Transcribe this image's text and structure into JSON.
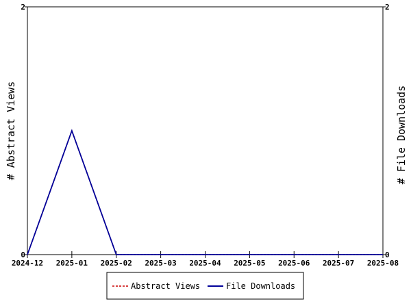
{
  "chart_data": {
    "type": "line",
    "x": [
      "2024-12",
      "2025-01",
      "2025-02",
      "2025-03",
      "2025-04",
      "2025-05",
      "2025-06",
      "2025-07",
      "2025-08"
    ],
    "series": [
      {
        "name": "Abstract Views",
        "values": [
          0,
          1,
          0,
          0,
          0,
          0,
          0,
          0,
          0
        ],
        "color": "#cc0000",
        "style": "dashed",
        "axis": "left"
      },
      {
        "name": "File Downloads",
        "values": [
          0,
          1,
          0,
          0,
          0,
          0,
          0,
          0,
          0
        ],
        "color": "#000099",
        "style": "solid",
        "axis": "right"
      }
    ],
    "ylabel_left": "# Abstract Views",
    "ylabel_right": "# File Downloads",
    "ylim_left": [
      0,
      2
    ],
    "ylim_right": [
      0,
      2
    ],
    "yticks": [
      0,
      2
    ],
    "grid": false,
    "legend_position": "bottom-center"
  }
}
